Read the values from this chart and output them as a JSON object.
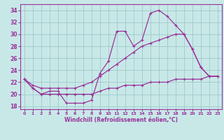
{
  "xlabel": "Windchill (Refroidissement éolien,°C)",
  "bg_color": "#c8e8e8",
  "line_color": "#993399",
  "grid_color": "#a0c8c8",
  "xlim": [
    -0.5,
    23.5
  ],
  "ylim": [
    17.5,
    35.0
  ],
  "yticks": [
    18,
    20,
    22,
    24,
    26,
    28,
    30,
    32,
    34
  ],
  "xtick_labels": [
    "0",
    "1",
    "2",
    "3",
    "4",
    "5",
    "6",
    "7",
    "8",
    "9",
    "10",
    "11",
    "12",
    "13",
    "14",
    "15",
    "16",
    "17",
    "18",
    "19",
    "20",
    "21",
    "22",
    "23"
  ],
  "line_a": [
    22.5,
    21.0,
    20.0,
    20.5,
    20.5,
    18.5,
    18.5,
    18.5,
    19.0,
    23.5,
    25.5,
    30.5,
    30.5,
    28.0,
    29.0,
    33.5,
    34.0,
    33.0,
    31.5,
    30.0,
    27.5,
    24.5,
    23.0,
    23.0
  ],
  "line_b": [
    22.5,
    21.5,
    21.0,
    21.0,
    21.0,
    21.0,
    21.0,
    21.5,
    22.0,
    23.0,
    24.0,
    25.0,
    26.0,
    27.0,
    28.0,
    28.5,
    29.0,
    29.5,
    30.0,
    30.0,
    27.5,
    24.5,
    23.0,
    23.0
  ],
  "line_c": [
    22.5,
    21.0,
    20.0,
    20.0,
    20.0,
    20.0,
    20.0,
    20.0,
    20.0,
    20.5,
    21.0,
    21.0,
    21.5,
    21.5,
    21.5,
    22.0,
    22.0,
    22.0,
    22.5,
    22.5,
    22.5,
    22.5,
    23.0,
    23.0
  ]
}
